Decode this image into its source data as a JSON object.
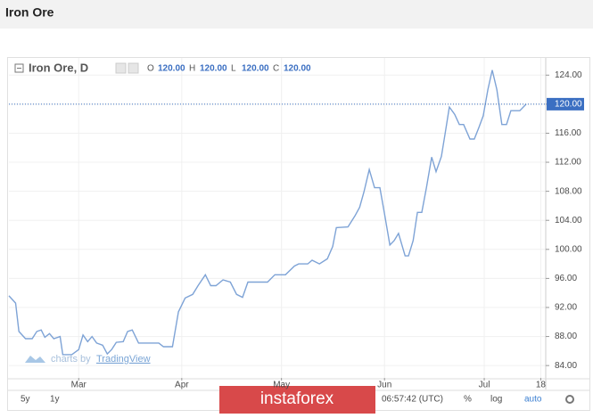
{
  "chart_data": {
    "type": "line",
    "title": "Iron Ore",
    "symbol": "Iron Ore, D",
    "ohlc": [
      {
        "key": "O",
        "label": "120.00"
      },
      {
        "key": "H",
        "label": "120.00"
      },
      {
        "key": "L",
        "label": "120.00"
      },
      {
        "key": "C",
        "label": "120.00"
      }
    ],
    "last_price": {
      "value": 120,
      "label": "120.00"
    },
    "credit": "charts by",
    "credit_brand": "TradingView",
    "logo": "instaforex",
    "toolbar": [
      "5y",
      "1y"
    ],
    "clock": "06:57:42 (UTC)",
    "toolbar_right": [
      "%",
      "log",
      "auto"
    ],
    "color": "#7ea3d6",
    "grid": true,
    "x": [
      -21,
      -19,
      -18,
      -16,
      -14,
      -12.6,
      -11.3,
      -10.2,
      -8.8,
      -7.5,
      -5.6,
      -4.8,
      -2.1,
      0,
      1.3,
      2.7,
      4,
      5.4,
      7.2,
      8.6,
      9.9,
      11.3,
      13.4,
      14.7,
      16.1,
      18,
      24.1,
      25.5,
      28.2,
      30,
      32,
      34.3,
      35.9,
      38.1,
      39.7,
      41.3,
      43.4,
      45.6,
      47.5,
      49.3,
      50.9,
      56.8,
      59,
      62.2,
      64.9,
      66.2,
      68.9,
      70.2,
      72.4,
      74.8,
      76.4,
      77.5,
      81,
      83.1,
      84.5,
      85.8,
      87.4,
      89,
      90.6,
      92,
      93.6,
      94.9,
      96.2,
      98.2,
      99.2,
      100.6,
      101.9,
      103.2,
      104.6,
      106.2,
      107.5,
      109.1,
      110.2,
      111.5,
      113.1,
      114.5,
      115.8,
      117.7,
      119,
      120.4,
      121.7,
      123.1,
      124.4,
      125.8,
      127.3,
      128.7,
      130,
      132.7,
      134.6
    ],
    "values": [
      93.6,
      92.6,
      88.7,
      87.7,
      87.7,
      88.7,
      88.9,
      87.9,
      88.4,
      87.7,
      88,
      85.5,
      85.5,
      86.2,
      88.2,
      87.3,
      88,
      87.1,
      86.8,
      85.6,
      86.2,
      87.2,
      87.3,
      88.7,
      88.9,
      87.1,
      87.1,
      86.6,
      86.6,
      91.4,
      93.3,
      93.8,
      95,
      96.5,
      95,
      95,
      95.8,
      95.5,
      93.8,
      93.4,
      95.5,
      95.5,
      96.5,
      96.5,
      97.7,
      98,
      98,
      98.5,
      98,
      98.7,
      100.4,
      103,
      103.1,
      104.6,
      105.8,
      107.9,
      111,
      108.5,
      108.5,
      104.9,
      100.6,
      101.2,
      102.2,
      99.1,
      99.1,
      101.2,
      105.1,
      105.1,
      108.5,
      112.7,
      110.7,
      112.8,
      115.9,
      119.6,
      118.6,
      117.2,
      117.2,
      115.2,
      115.2,
      116.8,
      118.4,
      122,
      124.7,
      122,
      117.2,
      117.2,
      119.1,
      119.1,
      120
    ],
    "xlim": [
      -21,
      140.5
    ],
    "xticks": [
      {
        "value": 0,
        "label": "Mar"
      },
      {
        "value": 31,
        "label": "Apr"
      },
      {
        "value": 61,
        "label": "May"
      },
      {
        "value": 92,
        "label": "Jun"
      },
      {
        "value": 122,
        "label": "Jul"
      },
      {
        "value": 139,
        "label": "18"
      }
    ],
    "ylim": [
      82.3,
      126
    ],
    "yticks": [
      {
        "value": 84,
        "label": "84.00"
      },
      {
        "value": 88,
        "label": "88.00"
      },
      {
        "value": 92,
        "label": "92.00"
      },
      {
        "value": 96,
        "label": "96.00"
      },
      {
        "value": 100,
        "label": "100.00"
      },
      {
        "value": 104,
        "label": "104.00"
      },
      {
        "value": 108,
        "label": "108.00"
      },
      {
        "value": 112,
        "label": "112.00"
      },
      {
        "value": 116,
        "label": "116.00"
      },
      {
        "value": 120,
        "label": "120.00"
      },
      {
        "value": 124,
        "label": "124.00"
      }
    ]
  }
}
